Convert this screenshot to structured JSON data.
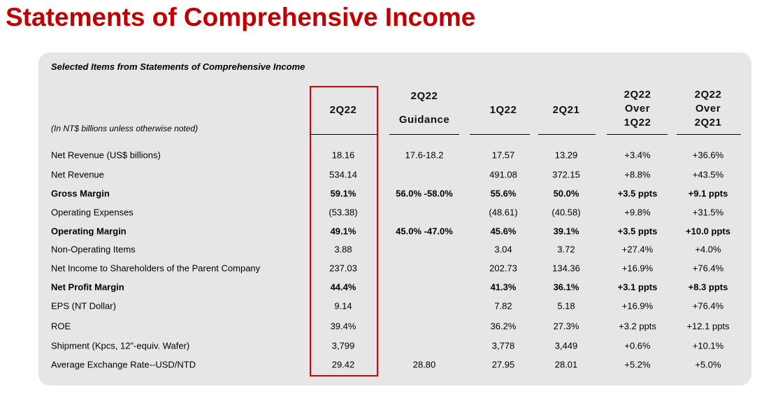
{
  "title": "Statements of Comprehensive Income",
  "table": {
    "caption": "Selected Items from Statements of Comprehensive Income",
    "note": "(In NT$ billions unless otherwise noted)",
    "columns": [
      [
        "2Q22"
      ],
      [
        "2Q22",
        "Guidance"
      ],
      [
        "1Q22"
      ],
      [
        "2Q21"
      ],
      [
        "2Q22",
        "Over",
        "1Q22"
      ],
      [
        "2Q22",
        "Over",
        "2Q21"
      ]
    ],
    "rows": [
      {
        "label": "Net Revenue (US$ billions)",
        "bold": false,
        "cells": [
          "18.16",
          "17.6-18.2",
          "17.57",
          "13.29",
          "+3.4%",
          "+36.6%"
        ]
      },
      {
        "label": "Net Revenue",
        "bold": false,
        "cells": [
          "534.14",
          null,
          "491.08",
          "372.15",
          "+8.8%",
          "+43.5%"
        ]
      },
      {
        "label": "Gross Margin",
        "bold": true,
        "cells": [
          "59.1%",
          "56.0% -58.0%",
          "55.6%",
          "50.0%",
          "+3.5 ppts",
          "+9.1 ppts"
        ]
      },
      {
        "label": "Operating Expenses",
        "bold": false,
        "cells": [
          "(53.38)",
          null,
          "(48.61)",
          "(40.58)",
          "+9.8%",
          "+31.5%"
        ]
      },
      {
        "label": "Operating Margin",
        "bold": true,
        "cells": [
          "49.1%",
          "45.0% -47.0%",
          "45.6%",
          "39.1%",
          "+3.5 ppts",
          "+10.0 ppts"
        ]
      },
      {
        "label": "Non-Operating Items",
        "bold": false,
        "cells": [
          "3.88",
          null,
          "3.04",
          "3.72",
          "+27.4%",
          "+4.0%"
        ]
      },
      {
        "label": "Net Income to Shareholders of the Parent Company",
        "bold": false,
        "cells": [
          "237.03",
          null,
          "202.73",
          "134.36",
          "+16.9%",
          "+76.4%"
        ]
      },
      {
        "label": "Net Profit Margin",
        "bold": true,
        "cells": [
          "44.4%",
          null,
          "41.3%",
          "36.1%",
          "+3.1 ppts",
          "+8.3 ppts"
        ]
      },
      {
        "label": "EPS (NT Dollar)",
        "bold": false,
        "cells": [
          "9.14",
          null,
          "7.82",
          "5.18",
          "+16.9%",
          "+76.4%"
        ]
      },
      {
        "label": "ROE",
        "bold": false,
        "cells": [
          "39.4%",
          null,
          "36.2%",
          "27.3%",
          "+3.2 ppts",
          "+12.1 ppts"
        ]
      },
      {
        "label": "Shipment (Kpcs, 12\"-equiv. Wafer)",
        "bold": false,
        "cells": [
          "3,799",
          null,
          "3,778",
          "3,449",
          "+0.6%",
          "+10.1%"
        ]
      },
      {
        "label": "Average Exchange Rate--USD/NTD",
        "bold": false,
        "cells": [
          "29.42",
          "28.80",
          "27.95",
          "28.01",
          "+5.2%",
          "+5.0%"
        ]
      }
    ]
  }
}
